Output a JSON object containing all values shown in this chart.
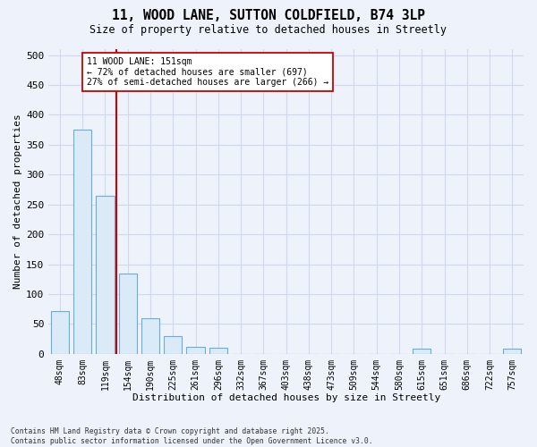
{
  "title": "11, WOOD LANE, SUTTON COLDFIELD, B74 3LP",
  "subtitle": "Size of property relative to detached houses in Streetly",
  "xlabel": "Distribution of detached houses by size in Streetly",
  "ylabel": "Number of detached properties",
  "bar_labels": [
    "48sqm",
    "83sqm",
    "119sqm",
    "154sqm",
    "190sqm",
    "225sqm",
    "261sqm",
    "296sqm",
    "332sqm",
    "367sqm",
    "403sqm",
    "438sqm",
    "473sqm",
    "509sqm",
    "544sqm",
    "580sqm",
    "615sqm",
    "651sqm",
    "686sqm",
    "722sqm",
    "757sqm"
  ],
  "bar_values": [
    72,
    375,
    265,
    135,
    60,
    30,
    12,
    10,
    0,
    0,
    0,
    0,
    0,
    0,
    0,
    0,
    8,
    0,
    0,
    0,
    8
  ],
  "bar_color": "#daeaf7",
  "bar_edge_color": "#6aaed6",
  "vline_x": 2.5,
  "vline_color": "#cc0000",
  "annotation_text": "11 WOOD LANE: 151sqm\n← 72% of detached houses are smaller (697)\n27% of semi-detached houses are larger (266) →",
  "annotation_box_color": "white",
  "annotation_box_edge_color": "#cc0000",
  "ylim": [
    0,
    510
  ],
  "yticks": [
    0,
    50,
    100,
    150,
    200,
    250,
    300,
    350,
    400,
    450,
    500
  ],
  "footer1": "Contains HM Land Registry data © Crown copyright and database right 2025.",
  "footer2": "Contains public sector information licensed under the Open Government Licence v3.0.",
  "background_color": "#edf2fb",
  "grid_color": "#d0d8ee",
  "plot_bg_color": "#edf2fb"
}
